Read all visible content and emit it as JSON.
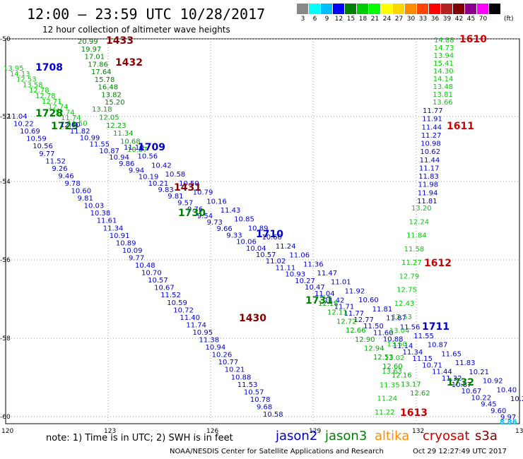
{
  "header": {
    "title": "12:00 – 23:59 UTC 10/28/2017",
    "subtitle": "12 hour collection of altimeter wave heights"
  },
  "legend": {
    "colors": [
      "#888888",
      "#00ffff",
      "#00bfff",
      "#0000ff",
      "#008000",
      "#00cc00",
      "#00ff00",
      "#ffff00",
      "#ffd700",
      "#ff8c00",
      "#ff4500",
      "#ff0000",
      "#b22222",
      "#800000",
      "#8b008b",
      "#ff00ff",
      "#000000"
    ],
    "ticks": [
      "3",
      "6",
      "9",
      "12",
      "15",
      "18",
      "21",
      "24",
      "27",
      "30",
      "33",
      "36",
      "39",
      "42",
      "45",
      "70"
    ],
    "unit": "(ft)"
  },
  "axes": {
    "lon_ticks": [
      "120",
      "123",
      "126",
      "129",
      "132",
      "135"
    ],
    "lat_ticks": [
      "-50",
      "-52",
      "-54",
      "-56",
      "-58",
      "-60"
    ]
  },
  "footer": {
    "note": "note: 1) Time is in UTC; 2) SWH is in feet",
    "credit": "NOAA/NESDIS Center for Satellite Applications and Research",
    "timestamp": "Oct 29 12:27:49 UTC 2017"
  },
  "satellites": [
    {
      "name": "jason2",
      "color": "#0000cc"
    },
    {
      "name": "jason3",
      "color": "#008000"
    },
    {
      "name": "altika",
      "color": "#ff8c00"
    },
    {
      "name": "cryosat",
      "color": "#cc0000"
    },
    {
      "name": "s3a",
      "color": "#800000"
    }
  ],
  "tracks": [
    {
      "label": "1433",
      "label_color": "#8b0000",
      "color": "#008000",
      "values": [
        "20.99",
        "19.97",
        "17.01",
        "17.86",
        "17.64",
        "15.78",
        "16.48",
        "13.82",
        "15.20"
      ]
    },
    {
      "label": "1432",
      "label_color": "#8b0000",
      "color": "#00aa00",
      "values": [
        "13.18",
        "12.05",
        "12.23",
        "11.34",
        "10.68",
        "10.87"
      ]
    },
    {
      "label": "1708",
      "label_color": "#0000cc",
      "color": "#00cc00",
      "values": [
        "13.95",
        "14.13",
        "12.53",
        "13.58",
        "12.78",
        "12.78",
        "12.71",
        "12.74",
        "12.74",
        "11.74",
        "11.50"
      ]
    },
    {
      "label": "1728",
      "label_color": "#008000",
      "color": "#0000cc",
      "values": [
        "11.04",
        "10.22",
        "10.69",
        "10.59",
        "10.56",
        "9.77",
        "11.52",
        "9.26",
        "9.46",
        "9.78",
        "10.60",
        "9.81",
        "10.03",
        "10.38",
        "11.61",
        "11.34",
        "10.91",
        "10.89",
        "10.09",
        "9.77",
        "10.48",
        "10.70",
        "10.57",
        "10.67",
        "11.52",
        "10.59",
        "10.72",
        "11.40",
        "11.74",
        "10.95",
        "11.38",
        "10.94",
        "10.26",
        "10.77",
        "10.21",
        "10.88",
        "11.53",
        "10.57",
        "10.78",
        "9.68",
        "10.58"
      ]
    },
    {
      "label": "1729",
      "label_color": "#008000",
      "color": "#0000cc",
      "values": [
        "12.00",
        "11.82",
        "10.99",
        "11.55",
        "10.87",
        "10.94",
        "9.86",
        "9.94",
        "10.19",
        "10.21",
        "9.83",
        "9.81",
        "9.57",
        "9.76",
        "9.54",
        "9.73",
        "9.66",
        "9.33",
        "10.06",
        "10.04",
        "10.57",
        "11.02",
        "11.11",
        "10.93",
        "10.27",
        "10.47",
        "11.04",
        "11.42",
        "11.71",
        "11.77",
        "12.77",
        "11.50",
        "11.60",
        "10.88",
        "11.14",
        "11.34",
        "11.15",
        "10.71",
        "11.44",
        "11.32",
        "10.87",
        "10.67",
        "10.22",
        "9.45",
        "9.60",
        "9.97"
      ]
    },
    {
      "label": "1709",
      "label_color": "#0000cc",
      "color": "#0000cc",
      "values": [
        "11.10",
        "10.56",
        "10.42",
        "10.58",
        "10.50",
        "10.79",
        "10.16",
        "11.43",
        "10.85",
        "10.89",
        "10.60",
        "11.24",
        "11.06",
        "11.36",
        "11.47",
        "11.01",
        "11.92",
        "10.60",
        "11.81",
        "11.87",
        "11.56",
        "11.55",
        "10.87",
        "11.65",
        "11.83",
        "10.21",
        "10.92",
        "10.40",
        "10.2"
      ]
    },
    {
      "label": "1731",
      "label_color": "#008000",
      "color": "#00aa00",
      "values": [
        "12.18",
        "12.11",
        "12.72",
        "12.66",
        "12.90",
        "12.94",
        "12.53",
        "12.60",
        "12.16",
        "13.17",
        "12.62"
      ]
    },
    {
      "label": "1610",
      "label_color": "#cc0000",
      "color": "#00cc00",
      "values": [
        "14.88",
        "14.73",
        "13.94",
        "15.41",
        "14.30",
        "14.14",
        "13.48",
        "13.81",
        "13.66"
      ]
    },
    {
      "label": "1611",
      "label_color": "#cc0000",
      "color": "#0000cc",
      "values": [
        "11.77",
        "11.91",
        "11.44",
        "11.27",
        "10.98",
        "10.62",
        "11.44",
        "11.17",
        "11.83",
        "11.98",
        "11.94",
        "11.81"
      ]
    },
    {
      "label": "1612",
      "label_color": "#cc0000",
      "color": "#00cc00",
      "values": [
        "13.20",
        "12.24",
        "11.84",
        "11.58",
        "11.27",
        "12.79",
        "12.75",
        "12.43",
        "12.53",
        "13.04",
        "13.50",
        "13.02",
        "13.63",
        "11.35",
        "11.24",
        "11.22"
      ]
    }
  ],
  "extra_labels": [
    {
      "text": "1430",
      "color": "#8b0000"
    },
    {
      "text": "1431",
      "color": "#8b0000"
    },
    {
      "text": "1710",
      "color": "#0000cc"
    },
    {
      "text": "1711",
      "color": "#0000cc"
    },
    {
      "text": "1730",
      "color": "#008000"
    },
    {
      "text": "1732",
      "color": "#008000"
    },
    {
      "text": "1613",
      "color": "#cc0000"
    },
    {
      "text": "8.86",
      "color": "#00bfff"
    }
  ]
}
